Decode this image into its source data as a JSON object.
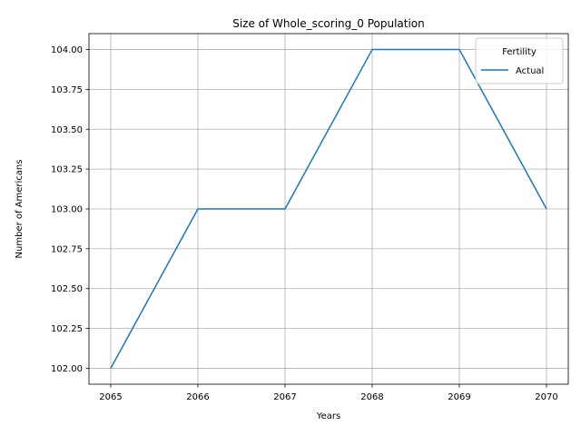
{
  "chart_data": {
    "type": "line",
    "title": "Size of Whole_scoring_0 Population",
    "xlabel": "Years",
    "ylabel": "Number of Americans",
    "x": [
      2065,
      2066,
      2067,
      2068,
      2069,
      2070
    ],
    "series": [
      {
        "name": "Actual",
        "color": "#1f77b4",
        "values": [
          102,
          103,
          103,
          104,
          104,
          103
        ]
      }
    ],
    "xlim": [
      2064.75,
      2070.25
    ],
    "ylim": [
      101.9,
      104.1
    ],
    "xticks": [
      "2065",
      "2066",
      "2067",
      "2068",
      "2069",
      "2070"
    ],
    "yticks": [
      "102.00",
      "102.25",
      "102.50",
      "102.75",
      "103.00",
      "103.25",
      "103.50",
      "103.75",
      "104.00"
    ],
    "grid": true,
    "legend": {
      "title": "Fertility",
      "placement": "top-right"
    }
  }
}
